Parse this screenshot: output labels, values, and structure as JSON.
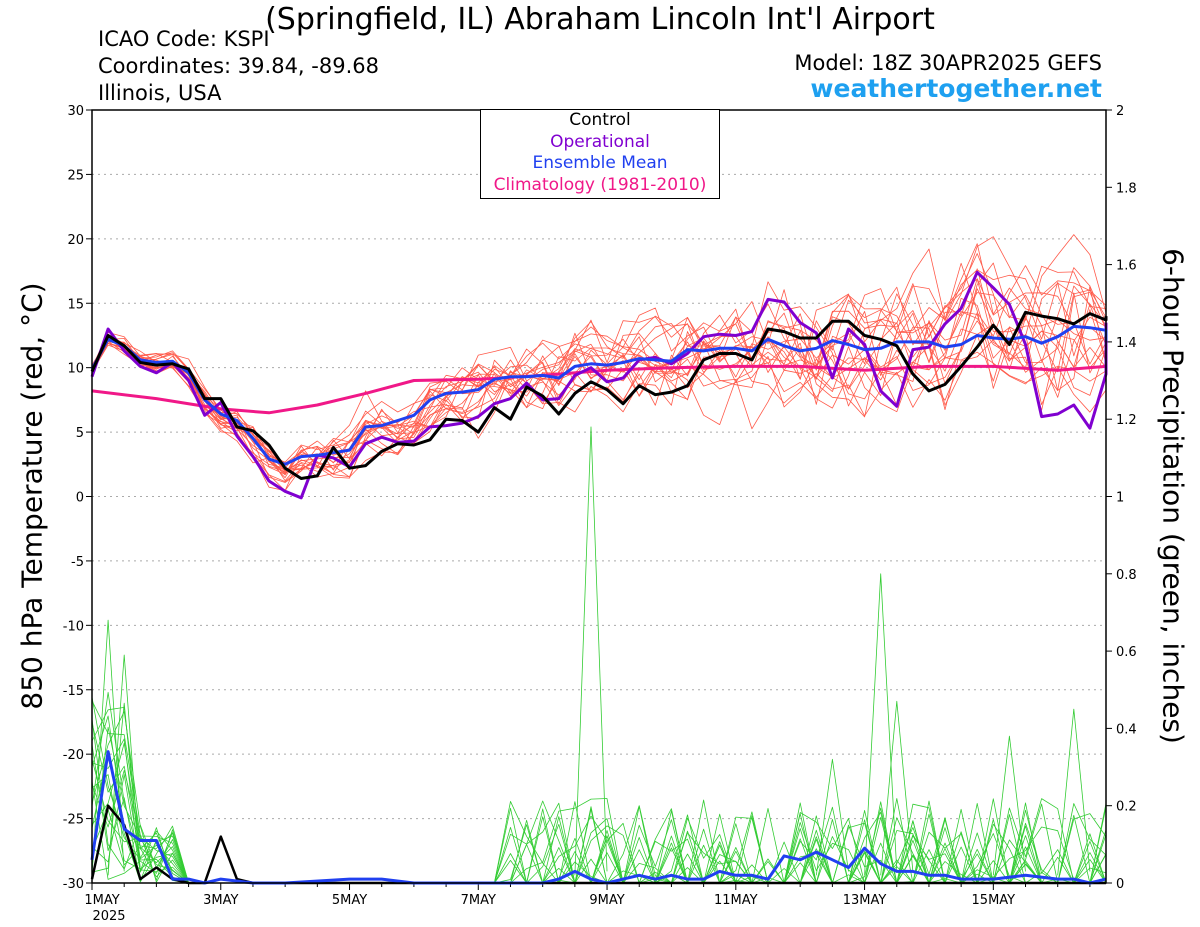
{
  "header": {
    "title": "(Springfield, IL) Abraham Lincoln Int'l Airport",
    "icao": "ICAO Code: KSPI",
    "coordinates": "Coordinates: 39.84, -89.68",
    "region": "Illinois, USA",
    "model": "Model: 18Z 30APR2025 GEFS",
    "site": "weathertogether.net"
  },
  "chart_data": {
    "type": "line",
    "y_left_label": "850 hPa Temperature (red, °C)",
    "y_right_label": "6-hour Precipitation (green, inches)",
    "y_left_range": [
      -30,
      30
    ],
    "y_left_ticks": [
      "30",
      "25",
      "20",
      "15",
      "10",
      "5",
      "0",
      "-5",
      "-10",
      "-15",
      "-20",
      "-25",
      "-30"
    ],
    "y_right_range": [
      0,
      2
    ],
    "y_right_ticks": [
      "2",
      "1.8",
      "1.6",
      "1.4",
      "1.2",
      "1",
      "0.8",
      "0.6",
      "0.4",
      "0.2",
      "0"
    ],
    "x_ticks": [
      {
        "day": 0,
        "label": "1MAY",
        "sub": "2025"
      },
      {
        "day": 2,
        "label": "3MAY",
        "sub": ""
      },
      {
        "day": 4,
        "label": "5MAY",
        "sub": ""
      },
      {
        "day": 6,
        "label": "7MAY",
        "sub": ""
      },
      {
        "day": 8,
        "label": "9MAY",
        "sub": ""
      },
      {
        "day": 10,
        "label": "11MAY",
        "sub": ""
      },
      {
        "day": 12,
        "label": "13MAY",
        "sub": ""
      },
      {
        "day": 14,
        "label": "15MAY",
        "sub": ""
      }
    ],
    "x_range_days": [
      0,
      15.75
    ],
    "grid": "horizontal dotted",
    "legend": [
      "Control",
      "Operational",
      "Ensemble Mean",
      "Climatology (1981-2010)"
    ],
    "legend_colors": [
      "#000000",
      "#8000d0",
      "#2040f0",
      "#f01888"
    ],
    "member_color": "#ff5a4a",
    "precip_member_color": "#33cc33",
    "climatology": [
      [
        0,
        8.2
      ],
      [
        1,
        7.6
      ],
      [
        2,
        6.8
      ],
      [
        2.75,
        6.5
      ],
      [
        3.5,
        7.1
      ],
      [
        4.25,
        8.0
      ],
      [
        5,
        9.0
      ],
      [
        6,
        9.1
      ],
      [
        7,
        9.4
      ],
      [
        8,
        9.8
      ],
      [
        9,
        10.0
      ],
      [
        10,
        10.1
      ],
      [
        11,
        10.1
      ],
      [
        12,
        9.8
      ],
      [
        13,
        10.1
      ],
      [
        14,
        10.1
      ],
      [
        15,
        9.8
      ],
      [
        15.75,
        10.1
      ]
    ],
    "temp_control": [
      [
        0,
        9.7
      ],
      [
        0.25,
        12.5
      ],
      [
        0.5,
        11.7
      ],
      [
        0.75,
        10.4
      ],
      [
        1,
        10.2
      ],
      [
        1.25,
        10.3
      ],
      [
        1.5,
        9.9
      ],
      [
        1.75,
        7.6
      ],
      [
        2,
        7.6
      ],
      [
        2.25,
        5.4
      ],
      [
        2.5,
        5.1
      ],
      [
        2.75,
        4.0
      ],
      [
        3,
        2.2
      ],
      [
        3.25,
        1.4
      ],
      [
        3.5,
        1.6
      ],
      [
        3.75,
        3.8
      ],
      [
        4,
        2.2
      ],
      [
        4.25,
        2.4
      ],
      [
        4.5,
        3.5
      ],
      [
        4.75,
        4.1
      ],
      [
        5,
        4.0
      ],
      [
        5.25,
        4.4
      ],
      [
        5.5,
        6.0
      ],
      [
        5.75,
        5.9
      ],
      [
        6,
        5.0
      ],
      [
        6.25,
        6.9
      ],
      [
        6.5,
        6.0
      ],
      [
        6.75,
        8.5
      ],
      [
        7,
        7.8
      ],
      [
        7.25,
        6.4
      ],
      [
        7.5,
        8.0
      ],
      [
        7.75,
        8.9
      ],
      [
        8,
        8.3
      ],
      [
        8.25,
        7.2
      ],
      [
        8.5,
        8.6
      ],
      [
        8.75,
        7.9
      ],
      [
        9,
        8.1
      ],
      [
        9.25,
        8.6
      ],
      [
        9.5,
        10.6
      ],
      [
        9.75,
        11.1
      ],
      [
        10,
        11.1
      ],
      [
        10.25,
        10.6
      ],
      [
        10.5,
        13.0
      ],
      [
        10.75,
        12.8
      ],
      [
        11,
        12.3
      ],
      [
        11.25,
        12.3
      ],
      [
        11.5,
        13.6
      ],
      [
        11.75,
        13.6
      ],
      [
        12,
        12.5
      ],
      [
        12.25,
        12.2
      ],
      [
        12.5,
        11.7
      ],
      [
        12.75,
        9.5
      ],
      [
        13,
        8.2
      ],
      [
        13.25,
        8.7
      ],
      [
        13.5,
        10.1
      ],
      [
        13.75,
        11.6
      ],
      [
        14,
        13.3
      ],
      [
        14.25,
        11.8
      ],
      [
        14.5,
        14.3
      ],
      [
        14.75,
        14.0
      ],
      [
        15,
        13.8
      ],
      [
        15.25,
        13.4
      ],
      [
        15.5,
        14.2
      ],
      [
        15.75,
        13.7
      ],
      [
        15.75,
        14.0
      ]
    ],
    "temp_operational": [
      [
        0,
        9.3
      ],
      [
        0.25,
        13.0
      ],
      [
        0.5,
        11.3
      ],
      [
        0.75,
        10.1
      ],
      [
        1,
        9.6
      ],
      [
        1.25,
        10.4
      ],
      [
        1.5,
        9.0
      ],
      [
        1.75,
        6.3
      ],
      [
        2,
        7.3
      ],
      [
        2.25,
        4.7
      ],
      [
        2.5,
        3.1
      ],
      [
        2.75,
        1.2
      ],
      [
        3,
        0.4
      ],
      [
        3.25,
        -0.1
      ],
      [
        3.5,
        3.2
      ],
      [
        3.75,
        3.0
      ],
      [
        4,
        2.3
      ],
      [
        4.25,
        4.1
      ],
      [
        4.5,
        4.6
      ],
      [
        4.75,
        4.2
      ],
      [
        5,
        4.3
      ],
      [
        5.25,
        5.4
      ],
      [
        5.5,
        5.5
      ],
      [
        5.75,
        5.7
      ],
      [
        6,
        6.2
      ],
      [
        6.25,
        7.2
      ],
      [
        6.5,
        7.6
      ],
      [
        6.75,
        8.8
      ],
      [
        7,
        7.5
      ],
      [
        7.25,
        7.6
      ],
      [
        7.5,
        9.4
      ],
      [
        7.75,
        10.0
      ],
      [
        8,
        8.9
      ],
      [
        8.25,
        9.2
      ],
      [
        8.5,
        10.6
      ],
      [
        8.75,
        10.8
      ],
      [
        9,
        10.3
      ],
      [
        9.25,
        11.1
      ],
      [
        9.5,
        12.4
      ],
      [
        9.75,
        12.6
      ],
      [
        10,
        12.5
      ],
      [
        10.25,
        12.8
      ],
      [
        10.5,
        15.3
      ],
      [
        10.75,
        15.1
      ],
      [
        11,
        13.5
      ],
      [
        11.25,
        12.7
      ],
      [
        11.5,
        9.2
      ],
      [
        11.75,
        13.0
      ],
      [
        12,
        11.8
      ],
      [
        12.25,
        8.2
      ],
      [
        12.5,
        7.0
      ],
      [
        12.75,
        11.4
      ],
      [
        13,
        11.6
      ],
      [
        13.25,
        13.4
      ],
      [
        13.5,
        14.6
      ],
      [
        13.75,
        17.4
      ],
      [
        14,
        16.2
      ],
      [
        14.25,
        14.9
      ],
      [
        14.5,
        11.8
      ],
      [
        14.75,
        6.2
      ],
      [
        15,
        6.4
      ],
      [
        15.25,
        7.1
      ],
      [
        15.5,
        5.3
      ],
      [
        15.75,
        9.5
      ],
      [
        15.75,
        13.5
      ]
    ],
    "temp_mean": [
      [
        0,
        9.9
      ],
      [
        0.25,
        12.2
      ],
      [
        0.5,
        11.7
      ],
      [
        0.75,
        10.6
      ],
      [
        1,
        10.4
      ],
      [
        1.25,
        10.5
      ],
      [
        1.5,
        9.6
      ],
      [
        1.75,
        7.5
      ],
      [
        2,
        6.4
      ],
      [
        2.25,
        5.9
      ],
      [
        2.5,
        4.5
      ],
      [
        2.75,
        2.9
      ],
      [
        3,
        2.5
      ],
      [
        3.25,
        3.1
      ],
      [
        3.5,
        3.2
      ],
      [
        3.75,
        3.4
      ],
      [
        4,
        3.6
      ],
      [
        4.25,
        5.4
      ],
      [
        4.5,
        5.5
      ],
      [
        4.75,
        5.9
      ],
      [
        5,
        6.3
      ],
      [
        5.25,
        7.5
      ],
      [
        5.5,
        8.0
      ],
      [
        5.75,
        8.1
      ],
      [
        6,
        8.3
      ],
      [
        6.25,
        9.1
      ],
      [
        6.5,
        9.3
      ],
      [
        6.75,
        9.3
      ],
      [
        7,
        9.4
      ],
      [
        7.25,
        9.2
      ],
      [
        7.5,
        10.1
      ],
      [
        7.75,
        10.3
      ],
      [
        8,
        10.2
      ],
      [
        8.25,
        10.4
      ],
      [
        8.5,
        10.7
      ],
      [
        8.75,
        10.6
      ],
      [
        9,
        10.5
      ],
      [
        9.25,
        11.4
      ],
      [
        9.5,
        11.3
      ],
      [
        9.75,
        11.5
      ],
      [
        10,
        11.5
      ],
      [
        10.25,
        11.3
      ],
      [
        10.5,
        12.2
      ],
      [
        10.75,
        11.7
      ],
      [
        11,
        11.3
      ],
      [
        11.25,
        11.5
      ],
      [
        11.5,
        12.1
      ],
      [
        11.75,
        11.8
      ],
      [
        12,
        11.4
      ],
      [
        12.25,
        11.5
      ],
      [
        12.5,
        12.0
      ],
      [
        12.75,
        12.0
      ],
      [
        13,
        12.0
      ],
      [
        13.25,
        11.6
      ],
      [
        13.5,
        11.8
      ],
      [
        13.75,
        12.5
      ],
      [
        14,
        12.3
      ],
      [
        14.25,
        12.2
      ],
      [
        14.5,
        12.4
      ],
      [
        14.75,
        11.9
      ],
      [
        15,
        12.4
      ],
      [
        15.25,
        13.2
      ],
      [
        15.5,
        13.1
      ],
      [
        15.75,
        12.9
      ],
      [
        15.75,
        12.1
      ]
    ],
    "precip_control": [
      [
        0,
        0.01
      ],
      [
        0.25,
        0.2
      ],
      [
        0.5,
        0.15
      ],
      [
        0.75,
        0.01
      ],
      [
        1,
        0.04
      ],
      [
        1.25,
        0.01
      ],
      [
        1.5,
        0.0
      ],
      [
        1.75,
        0.0
      ],
      [
        2,
        0.12
      ],
      [
        2.25,
        0.01
      ],
      [
        2.5,
        0.0
      ],
      [
        3,
        0.0
      ],
      [
        4,
        0.0
      ],
      [
        5,
        0.0
      ],
      [
        6,
        0.0
      ],
      [
        8,
        0.0
      ],
      [
        10,
        0.0
      ],
      [
        12,
        0.0
      ],
      [
        14,
        0.0
      ],
      [
        15.75,
        0.0
      ]
    ],
    "precip_mean": [
      [
        0,
        0.06
      ],
      [
        0.25,
        0.34
      ],
      [
        0.5,
        0.14
      ],
      [
        0.75,
        0.11
      ],
      [
        1,
        0.11
      ],
      [
        1.25,
        0.01
      ],
      [
        1.5,
        0.01
      ],
      [
        1.75,
        0.0
      ],
      [
        2,
        0.01
      ],
      [
        2.5,
        0.0
      ],
      [
        3,
        0.0
      ],
      [
        4,
        0.01
      ],
      [
        4.5,
        0.01
      ],
      [
        5,
        0.0
      ],
      [
        6,
        0.0
      ],
      [
        7,
        0.0
      ],
      [
        7.25,
        0.01
      ],
      [
        7.5,
        0.03
      ],
      [
        7.75,
        0.01
      ],
      [
        8,
        0.0
      ],
      [
        8.25,
        0.01
      ],
      [
        8.5,
        0.02
      ],
      [
        8.75,
        0.01
      ],
      [
        9,
        0.02
      ],
      [
        9.25,
        0.01
      ],
      [
        9.5,
        0.01
      ],
      [
        9.75,
        0.03
      ],
      [
        10,
        0.02
      ],
      [
        10.25,
        0.02
      ],
      [
        10.5,
        0.01
      ],
      [
        10.75,
        0.07
      ],
      [
        11,
        0.06
      ],
      [
        11.25,
        0.08
      ],
      [
        11.5,
        0.06
      ],
      [
        11.75,
        0.04
      ],
      [
        12,
        0.09
      ],
      [
        12.25,
        0.05
      ],
      [
        12.5,
        0.03
      ],
      [
        12.75,
        0.03
      ],
      [
        13,
        0.02
      ],
      [
        13.25,
        0.02
      ],
      [
        13.5,
        0.01
      ],
      [
        14,
        0.01
      ],
      [
        14.5,
        0.02
      ],
      [
        15,
        0.01
      ],
      [
        15.25,
        0.01
      ],
      [
        15.5,
        0.0
      ],
      [
        15.75,
        0.01
      ]
    ],
    "precip_peaks": [
      [
        0.25,
        0.68
      ],
      [
        0.5,
        0.59
      ],
      [
        7.75,
        1.18
      ],
      [
        11.5,
        0.32
      ],
      [
        12.25,
        0.8
      ],
      [
        12.5,
        0.47
      ],
      [
        14.25,
        0.38
      ],
      [
        15.25,
        0.45
      ]
    ]
  }
}
